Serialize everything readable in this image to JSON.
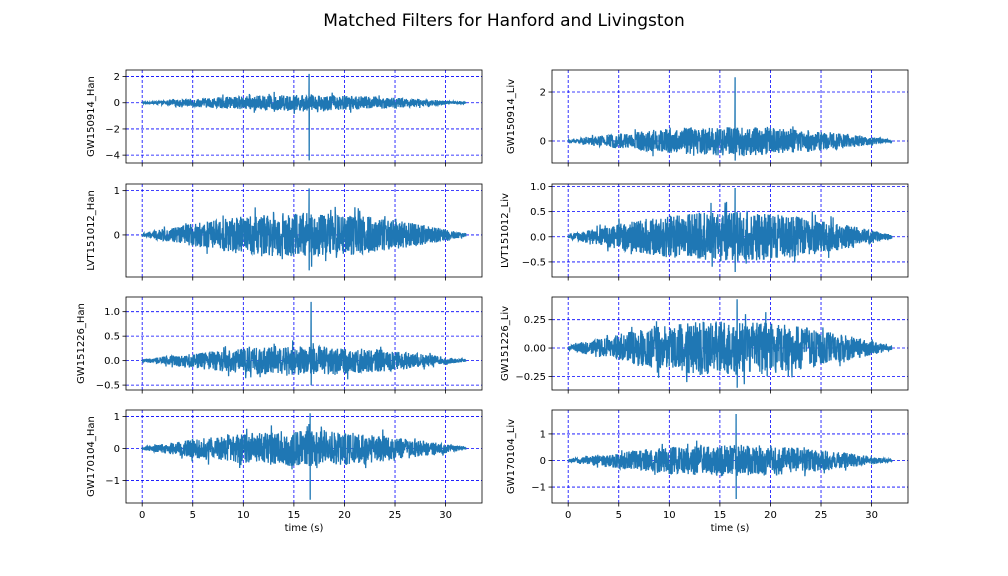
{
  "figure": {
    "title": "Matched Filters for Hanford and Livingston"
  },
  "colors": {
    "series": "#1f77b4",
    "grid": "#0000ff",
    "axes": "#000000"
  },
  "chart_data": [
    {
      "type": "line",
      "panel": "GW150914_Han",
      "ylabel": "GW150914_Han",
      "xlabel": "",
      "xlim": [
        -1.6,
        33.6
      ],
      "ylim": [
        -4.6,
        2.5
      ],
      "yticks": [
        -4,
        -2,
        0,
        2
      ],
      "ytick_labels": [
        "−4",
        "−2",
        "0",
        "2"
      ],
      "xticks": [
        0,
        5,
        10,
        15,
        20,
        25,
        30
      ],
      "xtick_labels": [],
      "grid": true,
      "duration_s": 32,
      "peak_time_s": 16.5,
      "envelope_amplitude": 0.6,
      "spike_max": 2.2,
      "spike_min": -4.4
    },
    {
      "type": "line",
      "panel": "GW150914_Liv",
      "ylabel": "GW150914_Liv",
      "xlabel": "",
      "xlim": [
        -1.6,
        33.6
      ],
      "ylim": [
        -0.9,
        2.9
      ],
      "yticks": [
        0,
        2
      ],
      "ytick_labels": [
        "0",
        "2"
      ],
      "xticks": [
        0,
        5,
        10,
        15,
        20,
        25,
        30
      ],
      "xtick_labels": [],
      "grid": true,
      "duration_s": 32,
      "peak_time_s": 16.5,
      "envelope_amplitude": 0.6,
      "spike_max": 2.6,
      "spike_min": -0.8
    },
    {
      "type": "line",
      "panel": "LVT151012_Han",
      "ylabel": "LVT151012_Han",
      "xlabel": "",
      "xlim": [
        -1.6,
        33.6
      ],
      "ylim": [
        -0.95,
        1.15
      ],
      "yticks": [
        0,
        1
      ],
      "ytick_labels": [
        "0",
        "1"
      ],
      "xticks": [
        0,
        5,
        10,
        15,
        20,
        25,
        30
      ],
      "xtick_labels": [],
      "grid": true,
      "duration_s": 32,
      "peak_time_s": 16.5,
      "envelope_amplitude": 0.5,
      "spike_max": 1.05,
      "spike_min": -0.8
    },
    {
      "type": "line",
      "panel": "LVT151012_Liv",
      "ylabel": "LVT151012_Liv",
      "xlabel": "",
      "xlim": [
        -1.6,
        33.6
      ],
      "ylim": [
        -0.8,
        1.05
      ],
      "yticks": [
        -0.5,
        0.0,
        0.5,
        1.0
      ],
      "ytick_labels": [
        "−0.5",
        "0.0",
        "0.5",
        "1.0"
      ],
      "xticks": [
        0,
        5,
        10,
        15,
        20,
        25,
        30
      ],
      "xtick_labels": [],
      "grid": true,
      "duration_s": 32,
      "peak_time_s": 16.5,
      "envelope_amplitude": 0.5,
      "spike_max": 0.97,
      "spike_min": -0.7
    },
    {
      "type": "line",
      "panel": "GW151226_Han",
      "ylabel": "GW151226_Han",
      "xlabel": "",
      "xlim": [
        -1.6,
        33.6
      ],
      "ylim": [
        -0.6,
        1.3
      ],
      "yticks": [
        -0.5,
        0.0,
        0.5,
        1.0
      ],
      "ytick_labels": [
        "−0.5",
        "0.0",
        "0.5",
        "1.0"
      ],
      "xticks": [
        0,
        5,
        10,
        15,
        20,
        25,
        30
      ],
      "xtick_labels": [],
      "grid": true,
      "duration_s": 32,
      "peak_time_s": 16.7,
      "envelope_amplitude": 0.3,
      "spike_max": 1.2,
      "spike_min": -0.5
    },
    {
      "type": "line",
      "panel": "GW151226_Liv",
      "ylabel": "GW151226_Liv",
      "xlabel": "",
      "xlim": [
        -1.6,
        33.6
      ],
      "ylim": [
        -0.37,
        0.45
      ],
      "yticks": [
        -0.25,
        0.0,
        0.25
      ],
      "ytick_labels": [
        "−0.25",
        "0.00",
        "0.25"
      ],
      "xticks": [
        0,
        5,
        10,
        15,
        20,
        25,
        30
      ],
      "xtick_labels": [],
      "grid": true,
      "duration_s": 32,
      "peak_time_s": 16.7,
      "envelope_amplitude": 0.24,
      "spike_max": 0.43,
      "spike_min": -0.35
    },
    {
      "type": "line",
      "panel": "GW170104_Han",
      "ylabel": "GW170104_Han",
      "xlabel": "time (s)",
      "xlim": [
        -1.6,
        33.6
      ],
      "ylim": [
        -1.7,
        1.2
      ],
      "yticks": [
        -1,
        0,
        1
      ],
      "ytick_labels": [
        "−1",
        "0",
        "1"
      ],
      "xticks": [
        0,
        5,
        10,
        15,
        20,
        25,
        30
      ],
      "xtick_labels": [
        "0",
        "5",
        "10",
        "15",
        "20",
        "25",
        "30"
      ],
      "grid": true,
      "duration_s": 32,
      "peak_time_s": 16.6,
      "envelope_amplitude": 0.55,
      "spike_max": 1.1,
      "spike_min": -1.6
    },
    {
      "type": "line",
      "panel": "GW170104_Liv",
      "ylabel": "GW170104_Liv",
      "xlabel": "time (s)",
      "xlim": [
        -1.6,
        33.6
      ],
      "ylim": [
        -1.6,
        1.9
      ],
      "yticks": [
        -1,
        0,
        1
      ],
      "ytick_labels": [
        "−1",
        "0",
        "1"
      ],
      "xticks": [
        0,
        5,
        10,
        15,
        20,
        25,
        30
      ],
      "xtick_labels": [
        "0",
        "5",
        "10",
        "15",
        "20",
        "25",
        "30"
      ],
      "grid": true,
      "duration_s": 32,
      "peak_time_s": 16.6,
      "envelope_amplitude": 0.6,
      "spike_max": 1.75,
      "spike_min": -1.45
    }
  ]
}
